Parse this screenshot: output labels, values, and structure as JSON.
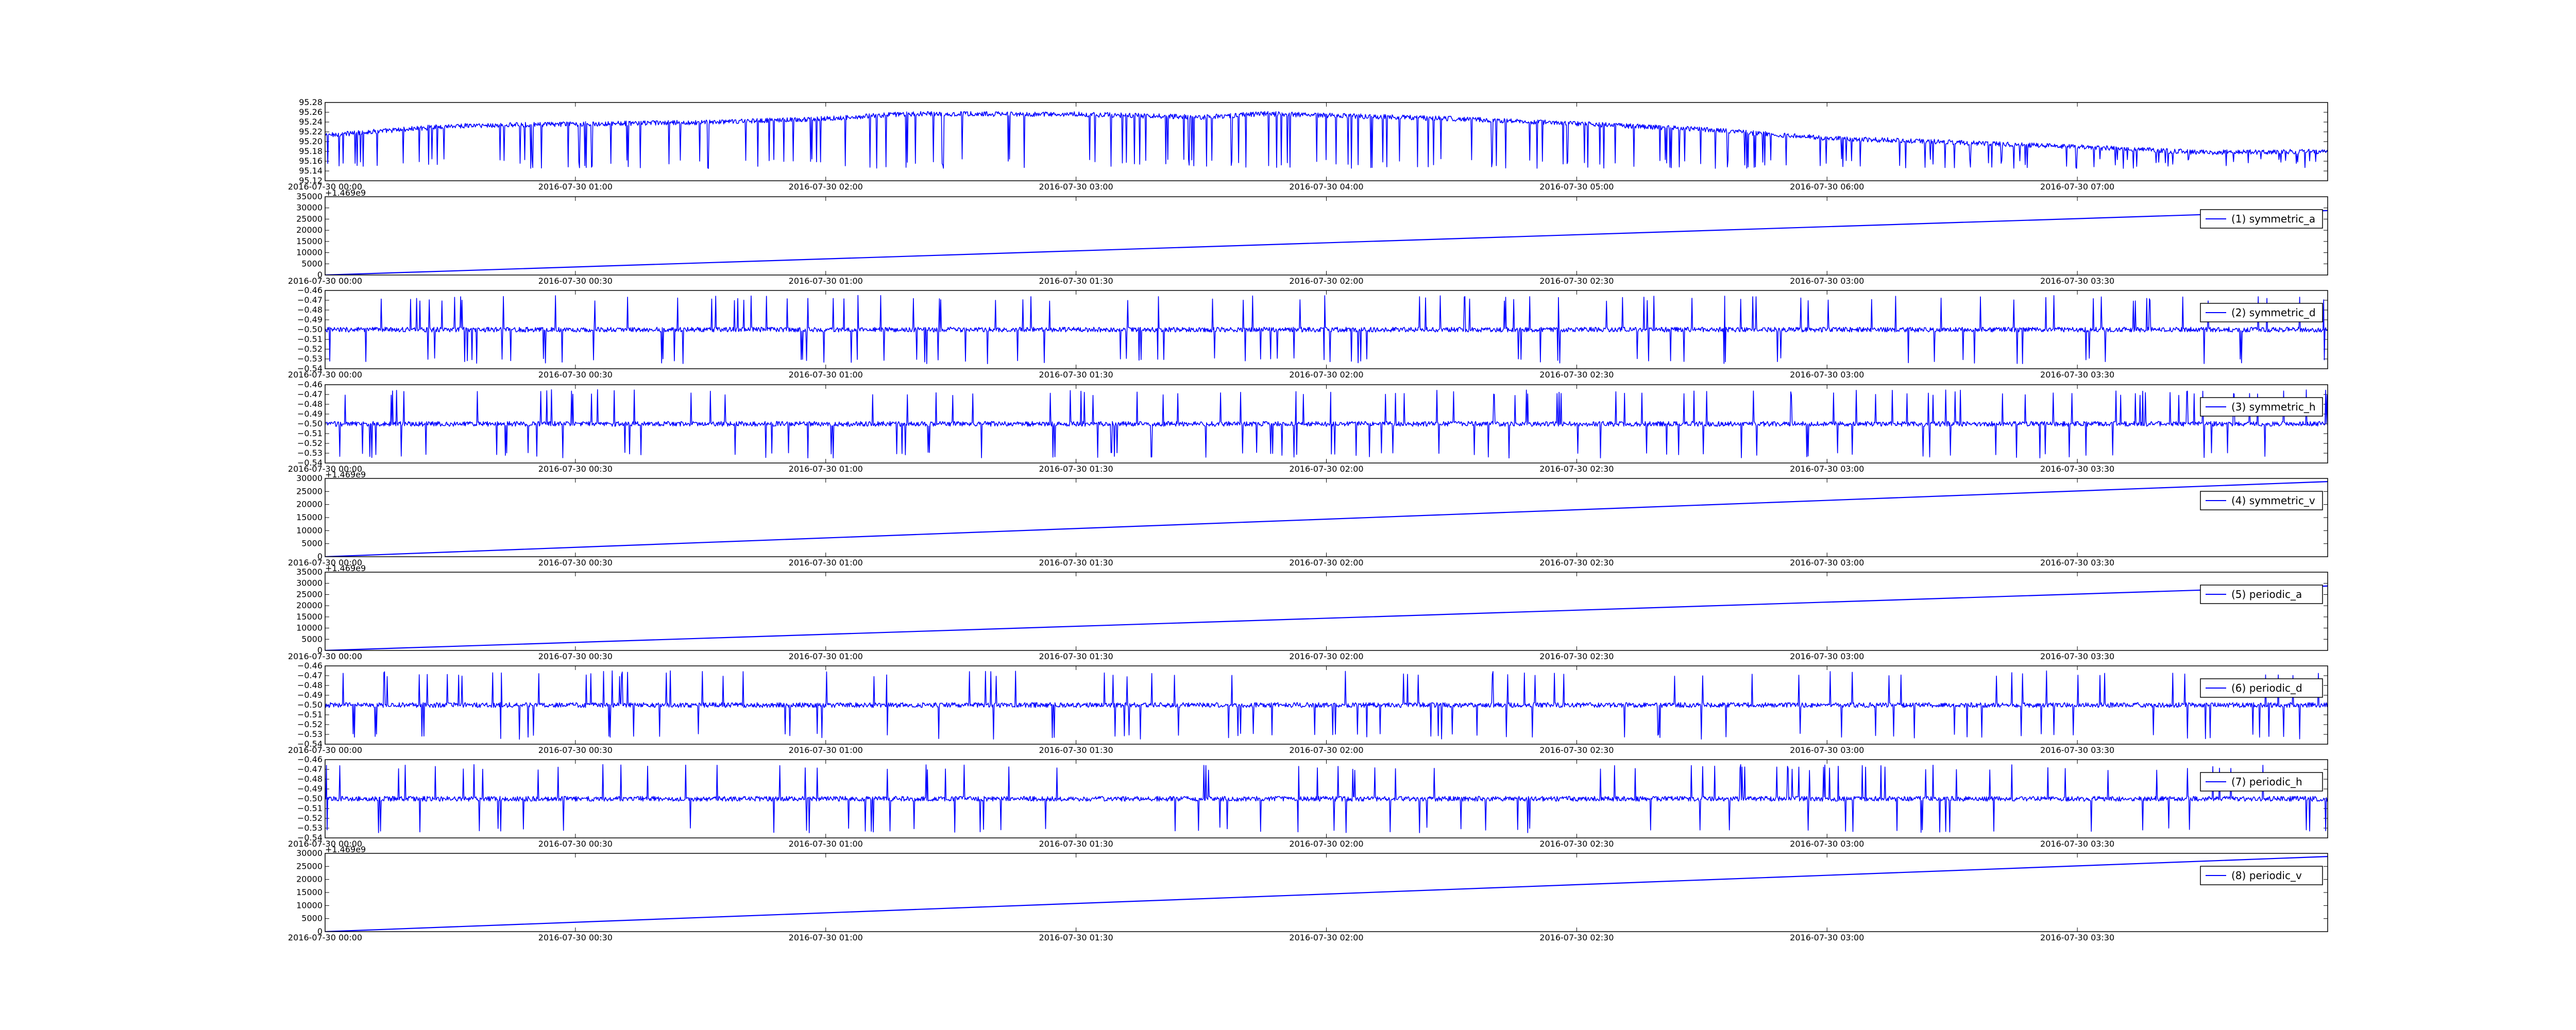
{
  "figure": {
    "background": "#ffffff",
    "line_color": "#0000ff",
    "axes_color": "#000000"
  },
  "chart_data": [
    {
      "type": "line",
      "panel": 0,
      "x_range": [
        "2016-07-30 00:00",
        "2016-07-30 08:00"
      ],
      "x_ticks": [
        "2016-07-30 00:00",
        "2016-07-30 01:00",
        "2016-07-30 02:00",
        "2016-07-30 03:00",
        "2016-07-30 04:00",
        "2016-07-30 05:00",
        "2016-07-30 06:00",
        "2016-07-30 07:00"
      ],
      "ylim": [
        95.12,
        95.28
      ],
      "y_ticks": [
        "95.12",
        "95.14",
        "95.16",
        "95.18",
        "95.20",
        "95.22",
        "95.24",
        "95.26",
        "95.28"
      ],
      "series": [
        {
          "style": "noisy_spikes",
          "trend": [
            {
              "t": "2016-07-30 00:00",
              "v": 95.213
            },
            {
              "t": "2016-07-30 00:30",
              "v": 95.232
            },
            {
              "t": "2016-07-30 01:00",
              "v": 95.236
            },
            {
              "t": "2016-07-30 01:30",
              "v": 95.239
            },
            {
              "t": "2016-07-30 02:00",
              "v": 95.247
            },
            {
              "t": "2016-07-30 02:20",
              "v": 95.257
            },
            {
              "t": "2016-07-30 03:00",
              "v": 95.256
            },
            {
              "t": "2016-07-30 03:30",
              "v": 95.25
            },
            {
              "t": "2016-07-30 03:45",
              "v": 95.257
            },
            {
              "t": "2016-07-30 04:30",
              "v": 95.247
            },
            {
              "t": "2016-07-30 05:00",
              "v": 95.237
            },
            {
              "t": "2016-07-30 05:30",
              "v": 95.225
            },
            {
              "t": "2016-07-30 06:00",
              "v": 95.207
            },
            {
              "t": "2016-07-30 06:30",
              "v": 95.199
            },
            {
              "t": "2016-07-30 07:00",
              "v": 95.189
            },
            {
              "t": "2016-07-30 07:30",
              "v": 95.178
            },
            {
              "t": "2016-07-30 08:00",
              "v": 95.18
            }
          ],
          "noise": 0.005,
          "spike_floor": 95.145,
          "spikes_per_hour": 26
        }
      ]
    },
    {
      "type": "line",
      "panel": 1,
      "offset_text": "+1.469e9",
      "x_range": [
        "2016-07-30 00:00",
        "2016-07-30 04:00"
      ],
      "x_ticks": [
        "2016-07-30 00:00",
        "2016-07-30 00:30",
        "2016-07-30 01:00",
        "2016-07-30 01:30",
        "2016-07-30 02:00",
        "2016-07-30 02:30",
        "2016-07-30 03:00",
        "2016-07-30 03:30"
      ],
      "ylim": [
        0,
        35000
      ],
      "y_ticks": [
        "0",
        "5000",
        "10000",
        "15000",
        "20000",
        "25000",
        "30000",
        "35000"
      ],
      "legend": "(1) symmetric_a",
      "series": [
        {
          "style": "line",
          "points": [
            {
              "t": "2016-07-30 00:00",
              "v": 0
            },
            {
              "t": "2016-07-30 04:00",
              "v": 28800
            }
          ]
        }
      ]
    },
    {
      "type": "line",
      "panel": 2,
      "x_range": [
        "2016-07-30 00:00",
        "2016-07-30 04:00"
      ],
      "x_ticks": [
        "2016-07-30 00:00",
        "2016-07-30 00:30",
        "2016-07-30 01:00",
        "2016-07-30 01:30",
        "2016-07-30 02:00",
        "2016-07-30 02:30",
        "2016-07-30 03:00",
        "2016-07-30 03:30"
      ],
      "ylim": [
        -0.54,
        -0.46
      ],
      "y_ticks": [
        "−0.54",
        "−0.53",
        "−0.52",
        "−0.51",
        "−0.50",
        "−0.49",
        "−0.48",
        "−0.47",
        "−0.46"
      ],
      "legend": "(2) symmetric_d",
      "series": [
        {
          "style": "noisy_spikes",
          "center": -0.5,
          "noise": 0.0025,
          "spike_up": -0.468,
          "spike_down": -0.532,
          "spikes_per_hour": 40
        }
      ]
    },
    {
      "type": "line",
      "panel": 3,
      "x_range": [
        "2016-07-30 00:00",
        "2016-07-30 04:00"
      ],
      "x_ticks": [
        "2016-07-30 00:00",
        "2016-07-30 00:30",
        "2016-07-30 01:00",
        "2016-07-30 01:30",
        "2016-07-30 02:00",
        "2016-07-30 02:30",
        "2016-07-30 03:00",
        "2016-07-30 03:30"
      ],
      "ylim": [
        -0.54,
        -0.46
      ],
      "y_ticks": [
        "−0.54",
        "−0.53",
        "−0.52",
        "−0.51",
        "−0.50",
        "−0.49",
        "−0.48",
        "−0.47",
        "−0.46"
      ],
      "legend": "(3) symmetric_h",
      "series": [
        {
          "style": "noisy_spikes",
          "center": -0.5,
          "noise": 0.0025,
          "spike_up": -0.468,
          "spike_down": -0.532,
          "spikes_per_hour": 40
        }
      ]
    },
    {
      "type": "line",
      "panel": 4,
      "offset_text": "+1.469e9",
      "x_range": [
        "2016-07-30 00:00",
        "2016-07-30 04:00"
      ],
      "x_ticks": [
        "2016-07-30 00:00",
        "2016-07-30 00:30",
        "2016-07-30 01:00",
        "2016-07-30 01:30",
        "2016-07-30 02:00",
        "2016-07-30 02:30",
        "2016-07-30 03:00",
        "2016-07-30 03:30"
      ],
      "ylim": [
        0,
        30000
      ],
      "y_ticks": [
        "0",
        "5000",
        "10000",
        "15000",
        "20000",
        "25000",
        "30000"
      ],
      "legend": "(4) symmetric_v",
      "series": [
        {
          "style": "line",
          "points": [
            {
              "t": "2016-07-30 00:00",
              "v": 0
            },
            {
              "t": "2016-07-30 04:00",
              "v": 28800
            }
          ]
        }
      ]
    },
    {
      "type": "line",
      "panel": 5,
      "offset_text": "+1.469e9",
      "x_range": [
        "2016-07-30 00:00",
        "2016-07-30 04:00"
      ],
      "x_ticks": [
        "2016-07-30 00:00",
        "2016-07-30 00:30",
        "2016-07-30 01:00",
        "2016-07-30 01:30",
        "2016-07-30 02:00",
        "2016-07-30 02:30",
        "2016-07-30 03:00",
        "2016-07-30 03:30"
      ],
      "ylim": [
        0,
        35000
      ],
      "y_ticks": [
        "0",
        "5000",
        "10000",
        "15000",
        "20000",
        "25000",
        "30000",
        "35000"
      ],
      "legend": "(5) periodic_a",
      "series": [
        {
          "style": "line",
          "points": [
            {
              "t": "2016-07-30 00:00",
              "v": 0
            },
            {
              "t": "2016-07-30 04:00",
              "v": 28800
            }
          ]
        }
      ]
    },
    {
      "type": "line",
      "panel": 6,
      "x_range": [
        "2016-07-30 00:00",
        "2016-07-30 04:00"
      ],
      "x_ticks": [
        "2016-07-30 00:00",
        "2016-07-30 00:30",
        "2016-07-30 01:00",
        "2016-07-30 01:30",
        "2016-07-30 02:00",
        "2016-07-30 02:30",
        "2016-07-30 03:00",
        "2016-07-30 03:30"
      ],
      "ylim": [
        -0.54,
        -0.46
      ],
      "y_ticks": [
        "−0.54",
        "−0.53",
        "−0.52",
        "−0.51",
        "−0.50",
        "−0.49",
        "−0.48",
        "−0.47",
        "−0.46"
      ],
      "legend": "(6) periodic_d",
      "series": [
        {
          "style": "noisy_spikes",
          "center": -0.5,
          "noise": 0.0025,
          "spike_up": -0.468,
          "spike_down": -0.532,
          "spikes_per_hour": 40
        }
      ]
    },
    {
      "type": "line",
      "panel": 7,
      "x_range": [
        "2016-07-30 00:00",
        "2016-07-30 04:00"
      ],
      "x_ticks": [
        "2016-07-30 00:00",
        "2016-07-30 00:30",
        "2016-07-30 01:00",
        "2016-07-30 01:30",
        "2016-07-30 02:00",
        "2016-07-30 02:30",
        "2016-07-30 03:00",
        "2016-07-30 03:30"
      ],
      "ylim": [
        -0.54,
        -0.46
      ],
      "y_ticks": [
        "−0.54",
        "−0.53",
        "−0.52",
        "−0.51",
        "−0.50",
        "−0.49",
        "−0.48",
        "−0.47",
        "−0.46"
      ],
      "legend": "(7) periodic_h",
      "series": [
        {
          "style": "noisy_spikes",
          "center": -0.5,
          "noise": 0.0025,
          "spike_up": -0.468,
          "spike_down": -0.532,
          "spikes_per_hour": 40
        }
      ]
    },
    {
      "type": "line",
      "panel": 8,
      "offset_text": "+1.469e9",
      "x_range": [
        "2016-07-30 00:00",
        "2016-07-30 04:00"
      ],
      "x_ticks": [
        "2016-07-30 00:00",
        "2016-07-30 00:30",
        "2016-07-30 01:00",
        "2016-07-30 01:30",
        "2016-07-30 02:00",
        "2016-07-30 02:30",
        "2016-07-30 03:00",
        "2016-07-30 03:30"
      ],
      "ylim": [
        0,
        30000
      ],
      "y_ticks": [
        "0",
        "5000",
        "10000",
        "15000",
        "20000",
        "25000",
        "30000"
      ],
      "legend": "(8) periodic_v",
      "series": [
        {
          "style": "line",
          "points": [
            {
              "t": "2016-07-30 00:00",
              "v": 0
            },
            {
              "t": "2016-07-30 04:00",
              "v": 28800
            }
          ]
        }
      ]
    }
  ]
}
